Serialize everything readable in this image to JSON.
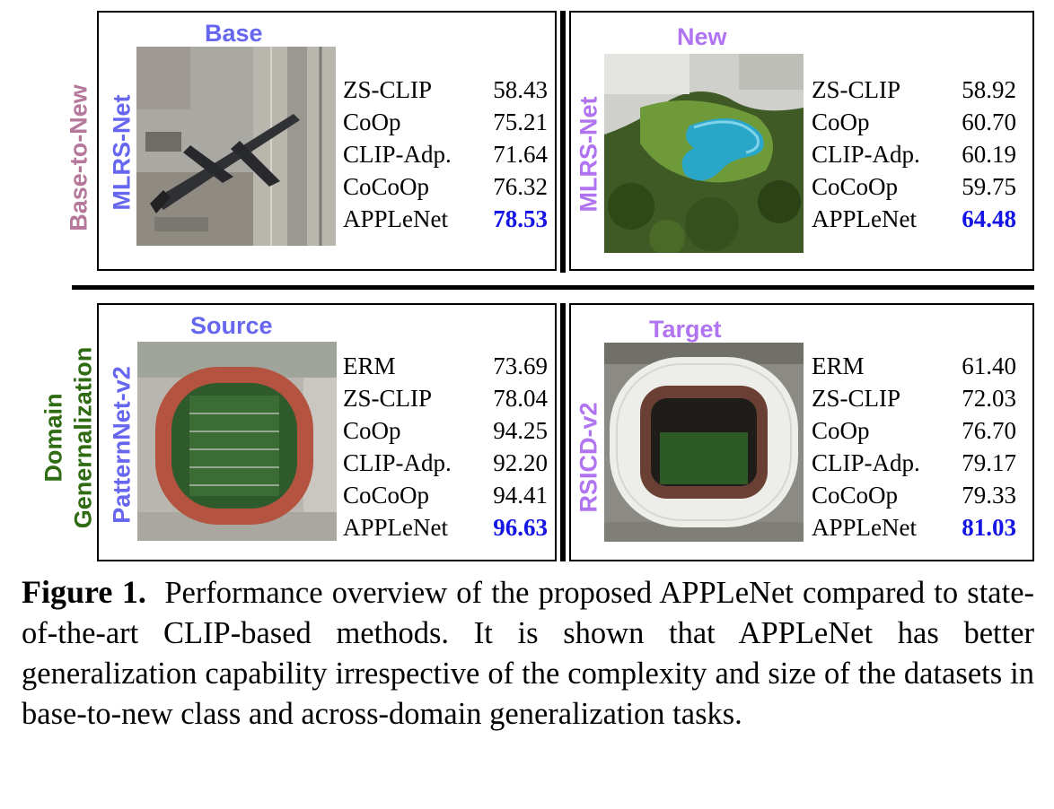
{
  "left_labels": {
    "top": "Base-to-New",
    "bottom_line1": "Domain",
    "bottom_line2": "Genernalization"
  },
  "colors": {
    "best": "#1515e6",
    "base_to_new": "#b5789a",
    "domain": "#2e6b12",
    "blue_label": "#6666ee",
    "purple_label": "#b074f0"
  },
  "panels": {
    "base": {
      "header": "Base",
      "dataset": "MLRS-Net",
      "image": "airport-airplane-aerial-image",
      "rows": [
        {
          "method": "ZS-CLIP",
          "value": "58.43"
        },
        {
          "method": "CoOp",
          "value": "75.21"
        },
        {
          "method": "CLIP-Adp.",
          "value": "71.64"
        },
        {
          "method": "CoCoOp",
          "value": "76.32"
        },
        {
          "method": "APPLeNet",
          "value": "78.53"
        }
      ]
    },
    "new": {
      "header": "New",
      "dataset": "MLRS-Net",
      "image": "swimming-pool-aerial-image",
      "rows": [
        {
          "method": "ZS-CLIP",
          "value": "58.92"
        },
        {
          "method": "CoOp",
          "value": "60.70"
        },
        {
          "method": "CLIP-Adp.",
          "value": "60.19"
        },
        {
          "method": "CoCoOp",
          "value": "59.75"
        },
        {
          "method": "APPLeNet",
          "value": "64.48"
        }
      ]
    },
    "source": {
      "header": "Source",
      "dataset": "PatternNet-v2",
      "image": "running-track-aerial-image",
      "rows": [
        {
          "method": "ERM",
          "value": "73.69"
        },
        {
          "method": "ZS-CLIP",
          "value": "78.04"
        },
        {
          "method": "CoOp",
          "value": "94.25"
        },
        {
          "method": "CLIP-Adp.",
          "value": "92.20"
        },
        {
          "method": "CoCoOp",
          "value": "94.41"
        },
        {
          "method": "APPLeNet",
          "value": "96.63"
        }
      ]
    },
    "target": {
      "header": "Target",
      "dataset": "RSICD-v2",
      "image": "stadium-aerial-image",
      "rows": [
        {
          "method": "ERM",
          "value": "61.40"
        },
        {
          "method": "ZS-CLIP",
          "value": "72.03"
        },
        {
          "method": "CoOp",
          "value": "76.70"
        },
        {
          "method": "CLIP-Adp.",
          "value": "79.17"
        },
        {
          "method": "CoCoOp",
          "value": "79.33"
        },
        {
          "method": "APPLeNet",
          "value": "81.03"
        }
      ]
    }
  },
  "caption": {
    "label": "Figure 1.",
    "text": "Performance overview of the proposed APPLeNet compared to state-of-the-art CLIP-based methods.  It is shown that APPLeNet has better generalization capability irrespective of the complexity and size of the datasets in base-to-new class and across-domain generalization tasks."
  }
}
